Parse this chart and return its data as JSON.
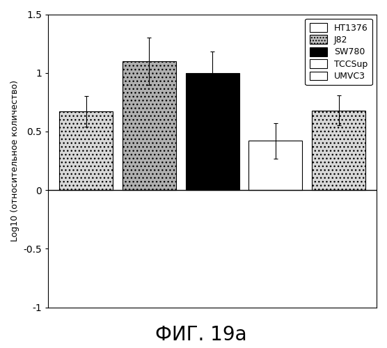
{
  "categories": [
    "HT1376",
    "J82",
    "SW780",
    "TCCSup",
    "UMVC3"
  ],
  "values": [
    0.67,
    1.1,
    1.0,
    0.42,
    0.68
  ],
  "errors": [
    0.13,
    0.2,
    0.18,
    0.15,
    0.13
  ],
  "bar_colors": [
    "#d8d8d8",
    "#b0b0b0",
    "#000000",
    "#ffffff",
    "#d8d8d8"
  ],
  "bar_hatches": [
    "...",
    "...",
    "",
    "",
    "..."
  ],
  "bar_edgecolors": [
    "black",
    "black",
    "black",
    "black",
    "black"
  ],
  "ylabel": "Log10 (относительное количество)",
  "caption": "ФИГ. 19a",
  "ylim": [
    -1,
    1.5
  ],
  "yticks": [
    -1,
    -0.5,
    0,
    0.5,
    1,
    1.5
  ],
  "legend_labels": [
    "HT1376",
    "J82",
    "SW780",
    "TCCSup",
    "UMVC3"
  ],
  "legend_colors": [
    "#d8d8d8",
    "#b0b0b0",
    "#000000",
    "#ffffff",
    "#ffffff"
  ],
  "legend_hatches": [
    "",
    "...",
    "",
    "",
    ""
  ]
}
